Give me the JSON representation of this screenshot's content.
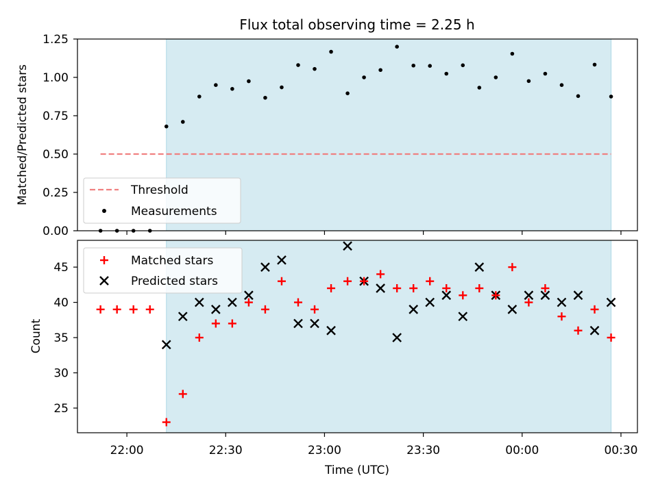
{
  "title": "Flux total observing time = 2.25 h",
  "colors": {
    "span": "#add8e6",
    "threshold": "#f08080",
    "measurement": "#000000",
    "matched": "#ff0000",
    "predicted": "#000000"
  },
  "chart_data": [
    {
      "type": "scatter",
      "panel": "top",
      "ylabel": "Matched/Predicted stars",
      "ylim": [
        0,
        1.25
      ],
      "yticks": [
        0,
        0.25,
        0.5,
        0.75,
        1.0,
        1.25
      ],
      "ytick_labels": [
        "0.00",
        "0.25",
        "0.50",
        "0.75",
        "1.00",
        "1.25"
      ],
      "xlim": [
        "21:45",
        "00:35"
      ],
      "xticks": [
        "22:00",
        "22:30",
        "23:00",
        "23:30",
        "00:00",
        "00:30"
      ],
      "grid": false,
      "legend": {
        "position": "lower-left",
        "entries": [
          {
            "label": "Threshold",
            "marker": "dashed-line"
          },
          {
            "label": "Measurements",
            "marker": "dot"
          }
        ]
      },
      "shaded_span": [
        "22:12",
        "00:27"
      ],
      "threshold": {
        "value": 0.5,
        "x_range": [
          "21:52",
          "00:27"
        ]
      },
      "series": [
        {
          "name": "Measurements",
          "x": [
            "21:52",
            "21:57",
            "22:02",
            "22:07",
            "22:12",
            "22:17",
            "22:22",
            "22:27",
            "22:32",
            "22:37",
            "22:42",
            "22:47",
            "22:52",
            "22:57",
            "23:02",
            "23:07",
            "23:12",
            "23:17",
            "23:22",
            "23:27",
            "23:32",
            "23:37",
            "23:42",
            "23:47",
            "23:52",
            "23:57",
            "00:02",
            "00:07",
            "00:12",
            "00:17",
            "00:22",
            "00:27"
          ],
          "y": [
            0,
            0,
            0,
            0,
            0.68,
            0.71,
            0.875,
            0.95,
            0.925,
            0.975,
            0.867,
            0.935,
            1.08,
            1.055,
            1.167,
            0.896,
            1.0,
            1.048,
            1.2,
            1.077,
            1.075,
            1.024,
            1.079,
            0.933,
            1.0,
            1.154,
            0.976,
            1.024,
            0.95,
            0.878,
            1.083,
            0.875
          ]
        }
      ]
    },
    {
      "type": "scatter",
      "panel": "bottom",
      "xlabel": "Time (UTC)",
      "ylabel": "Count",
      "ylim": [
        21.5,
        48.8
      ],
      "yticks": [
        25,
        30,
        35,
        40,
        45
      ],
      "xlim": [
        "21:45",
        "00:35"
      ],
      "xticks": [
        "22:00",
        "22:30",
        "23:00",
        "23:30",
        "00:00",
        "00:30"
      ],
      "grid": false,
      "legend": {
        "position": "upper-left",
        "entries": [
          {
            "label": "Matched stars",
            "marker": "plus"
          },
          {
            "label": "Predicted stars",
            "marker": "x"
          }
        ]
      },
      "shaded_span": [
        "22:12",
        "00:27"
      ],
      "series": [
        {
          "name": "Matched stars",
          "x": [
            "21:52",
            "21:57",
            "22:02",
            "22:07",
            "22:12",
            "22:17",
            "22:22",
            "22:27",
            "22:32",
            "22:37",
            "22:42",
            "22:47",
            "22:52",
            "22:57",
            "23:02",
            "23:07",
            "23:12",
            "23:17",
            "23:22",
            "23:27",
            "23:32",
            "23:37",
            "23:42",
            "23:47",
            "23:52",
            "23:57",
            "00:02",
            "00:07",
            "00:12",
            "00:17",
            "00:22",
            "00:27"
          ],
          "y": [
            39,
            39,
            39,
            39,
            23,
            27,
            35,
            37,
            37,
            40,
            39,
            43,
            40,
            39,
            42,
            43,
            43,
            44,
            42,
            42,
            43,
            42,
            41,
            42,
            41,
            45,
            40,
            42,
            38,
            36,
            39,
            35
          ]
        },
        {
          "name": "Predicted stars",
          "x": [
            "22:12",
            "22:17",
            "22:22",
            "22:27",
            "22:32",
            "22:37",
            "22:42",
            "22:47",
            "22:52",
            "22:57",
            "23:02",
            "23:07",
            "23:12",
            "23:17",
            "23:22",
            "23:27",
            "23:32",
            "23:37",
            "23:42",
            "23:47",
            "23:52",
            "23:57",
            "00:02",
            "00:07",
            "00:12",
            "00:17",
            "00:22",
            "00:27"
          ],
          "y": [
            34,
            38,
            40,
            39,
            40,
            41,
            45,
            46,
            37,
            37,
            36,
            48,
            43,
            42,
            35,
            39,
            40,
            41,
            38,
            45,
            41,
            39,
            41,
            41,
            40,
            41,
            36,
            40
          ]
        }
      ]
    }
  ]
}
